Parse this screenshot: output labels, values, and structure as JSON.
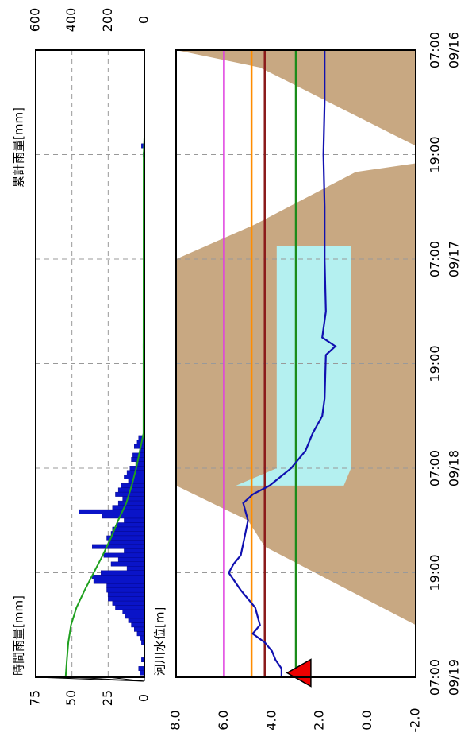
{
  "chart_data": [
    {
      "type": "bar",
      "id": "rainfall",
      "title": "",
      "ylabel_left": "時間雨量[mm]",
      "ylabel_right": "累計雨量[mm]",
      "ylim": [
        0,
        75
      ],
      "ylim_right": [
        0,
        600
      ],
      "ticks_left": [
        "75",
        "50",
        "25",
        "0"
      ],
      "ticks_right": [
        "600",
        "400",
        "200",
        "0"
      ],
      "grid": true,
      "colors": {
        "bars": "#0a14c8",
        "cumulative": "#1fa01f",
        "frame": "#000000",
        "grid": "#999999"
      },
      "hourly_rainfall": [
        {
          "t": 11.0,
          "v": 2
        },
        {
          "t": 12.0,
          "v": 1
        },
        {
          "t": 34.0,
          "v": 1
        },
        {
          "t": 44.5,
          "v": 4
        },
        {
          "t": 45.0,
          "v": 5
        },
        {
          "t": 45.5,
          "v": 7
        },
        {
          "t": 46.0,
          "v": 3
        },
        {
          "t": 46.5,
          "v": 8
        },
        {
          "t": 47.0,
          "v": 9
        },
        {
          "t": 47.5,
          "v": 6
        },
        {
          "t": 48.0,
          "v": 10
        },
        {
          "t": 48.5,
          "v": 12
        },
        {
          "t": 49.0,
          "v": 14
        },
        {
          "t": 49.5,
          "v": 11
        },
        {
          "t": 50.0,
          "v": 16
        },
        {
          "t": 50.5,
          "v": 18
        },
        {
          "t": 51.0,
          "v": 20
        },
        {
          "t": 51.5,
          "v": 15
        },
        {
          "t": 52.0,
          "v": 18
        },
        {
          "t": 52.5,
          "v": 22
        },
        {
          "t": 53.0,
          "v": 45
        },
        {
          "t": 53.5,
          "v": 29
        },
        {
          "t": 54.0,
          "v": 14
        },
        {
          "t": 54.5,
          "v": 19
        },
        {
          "t": 55.0,
          "v": 22
        },
        {
          "t": 55.5,
          "v": 23
        },
        {
          "t": 56.0,
          "v": 26
        },
        {
          "t": 56.5,
          "v": 24
        },
        {
          "t": 57.0,
          "v": 36
        },
        {
          "t": 57.5,
          "v": 14
        },
        {
          "t": 58.0,
          "v": 28
        },
        {
          "t": 58.5,
          "v": 18
        },
        {
          "t": 59.0,
          "v": 23
        },
        {
          "t": 59.5,
          "v": 12
        },
        {
          "t": 60.0,
          "v": 30
        },
        {
          "t": 60.5,
          "v": 36
        },
        {
          "t": 61.0,
          "v": 35
        },
        {
          "t": 61.5,
          "v": 26
        },
        {
          "t": 62.0,
          "v": 26
        },
        {
          "t": 62.5,
          "v": 25
        },
        {
          "t": 63.0,
          "v": 25
        },
        {
          "t": 63.5,
          "v": 22
        },
        {
          "t": 64.0,
          "v": 20
        },
        {
          "t": 64.5,
          "v": 15
        },
        {
          "t": 65.0,
          "v": 13
        },
        {
          "t": 65.5,
          "v": 11
        },
        {
          "t": 66.0,
          "v": 9
        },
        {
          "t": 66.5,
          "v": 7
        },
        {
          "t": 67.0,
          "v": 5
        },
        {
          "t": 67.5,
          "v": 3
        },
        {
          "t": 68.0,
          "v": 2
        },
        {
          "t": 70.0,
          "v": 2
        },
        {
          "t": 71.0,
          "v": 4
        },
        {
          "t": 71.5,
          "v": 3
        }
      ],
      "cumulative_rainfall": [
        {
          "t": 0,
          "v": 0
        },
        {
          "t": 10,
          "v": 0
        },
        {
          "t": 12,
          "v": 4
        },
        {
          "t": 44,
          "v": 5
        },
        {
          "t": 46,
          "v": 25
        },
        {
          "t": 48,
          "v": 45
        },
        {
          "t": 50,
          "v": 70
        },
        {
          "t": 52,
          "v": 100
        },
        {
          "t": 54,
          "v": 145
        },
        {
          "t": 56,
          "v": 185
        },
        {
          "t": 58,
          "v": 230
        },
        {
          "t": 60,
          "v": 280
        },
        {
          "t": 62,
          "v": 330
        },
        {
          "t": 64,
          "v": 375
        },
        {
          "t": 66,
          "v": 405
        },
        {
          "t": 68,
          "v": 420
        },
        {
          "t": 70,
          "v": 428
        },
        {
          "t": 72,
          "v": 435
        }
      ]
    },
    {
      "type": "line",
      "id": "water_level",
      "title": "",
      "ylabel": "河川水位[m]",
      "ylim": [
        -2.0,
        8.0
      ],
      "yticks": [
        "8.0",
        "6.0",
        "4.0",
        "2.0",
        "0.0",
        "-2.0"
      ],
      "grid": true,
      "x_ticks": [
        {
          "t": 0,
          "time": "07:00",
          "date": "09/16"
        },
        {
          "t": 12,
          "time": "19:00",
          "date": ""
        },
        {
          "t": 24,
          "time": "07:00",
          "date": "09/17"
        },
        {
          "t": 36,
          "time": "19:00",
          "date": ""
        },
        {
          "t": 48,
          "time": "07:00",
          "date": "09/18"
        },
        {
          "t": 60,
          "time": "19:00",
          "date": ""
        },
        {
          "t": 72,
          "time": "07:00",
          "date": "09/19"
        }
      ],
      "xlim": [
        0,
        72
      ],
      "thresholds": [
        {
          "level": 6.0,
          "color": "#e040e0"
        },
        {
          "level": 4.85,
          "color": "#ff8c00"
        },
        {
          "level": 4.3,
          "color": "#8b1a1a"
        },
        {
          "level": 3.0,
          "color": "#1a8c1a"
        }
      ],
      "colors": {
        "ground": "#c8a882",
        "water": "#b4f0f0",
        "level_line": "#1010b0",
        "marker": "#ee0000"
      },
      "cross_section": [
        {
          "t": 0,
          "ground": 8.0
        },
        {
          "t": 2,
          "ground": 4.5
        },
        {
          "t": 11,
          "ground": -2.0
        },
        {
          "t": 13,
          "ground": -2.0
        },
        {
          "t": 14,
          "ground": 0.5
        },
        {
          "t": 20,
          "ground": 4.7
        },
        {
          "t": 24,
          "ground": 8.0
        },
        {
          "t": 50,
          "ground": 8.0
        },
        {
          "t": 54,
          "ground": 5.0
        },
        {
          "t": 57,
          "ground": 4.3
        },
        {
          "t": 66,
          "ground": -2.0
        },
        {
          "t": 72,
          "ground": -2.0
        }
      ],
      "water_area": [
        {
          "t": 22.5,
          "top": 3.8,
          "bottom": 0.7
        },
        {
          "t": 48,
          "top": 3.8,
          "bottom": 0.7
        },
        {
          "t": 50,
          "top": 5.5,
          "bottom": 1.0
        }
      ],
      "level_series": [
        {
          "t": 0,
          "v": 1.8
        },
        {
          "t": 6,
          "v": 1.8
        },
        {
          "t": 12,
          "v": 1.85
        },
        {
          "t": 18,
          "v": 1.8
        },
        {
          "t": 24,
          "v": 1.8
        },
        {
          "t": 30,
          "v": 1.75
        },
        {
          "t": 33,
          "v": 1.9
        },
        {
          "t": 34,
          "v": 1.35
        },
        {
          "t": 35,
          "v": 1.75
        },
        {
          "t": 40,
          "v": 1.8
        },
        {
          "t": 42,
          "v": 1.9
        },
        {
          "t": 44,
          "v": 2.3
        },
        {
          "t": 46,
          "v": 2.6
        },
        {
          "t": 48,
          "v": 3.2
        },
        {
          "t": 50,
          "v": 4.1
        },
        {
          "t": 51,
          "v": 4.8
        },
        {
          "t": 52,
          "v": 5.2
        },
        {
          "t": 53,
          "v": 5.1
        },
        {
          "t": 54,
          "v": 5.0
        },
        {
          "t": 56,
          "v": 5.15
        },
        {
          "t": 58,
          "v": 5.3
        },
        {
          "t": 59,
          "v": 5.6
        },
        {
          "t": 60,
          "v": 5.8
        },
        {
          "t": 62,
          "v": 5.3
        },
        {
          "t": 64,
          "v": 4.7
        },
        {
          "t": 66,
          "v": 4.5
        },
        {
          "t": 67,
          "v": 4.8
        },
        {
          "t": 68,
          "v": 4.3
        },
        {
          "t": 69,
          "v": 4.0
        },
        {
          "t": 70,
          "v": 3.85
        },
        {
          "t": 71,
          "v": 3.6
        },
        {
          "t": 72,
          "v": 3.6
        }
      ],
      "current_marker": {
        "t": 71.5,
        "v": 3.5
      }
    }
  ]
}
